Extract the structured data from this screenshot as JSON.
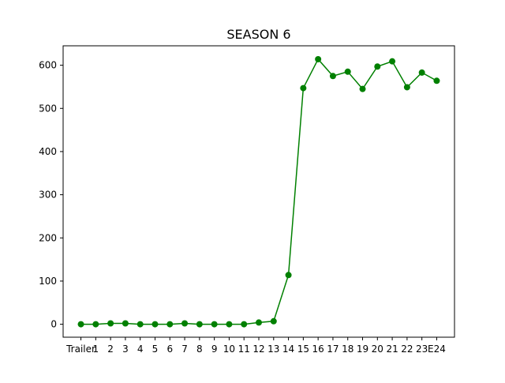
{
  "chart_data": {
    "type": "line",
    "title": "SEASON 6",
    "xlabel": "",
    "ylabel": "",
    "categories": [
      "Trailer",
      "1",
      "2",
      "3",
      "4",
      "5",
      "6",
      "7",
      "8",
      "9",
      "10",
      "11",
      "12",
      "13",
      "14",
      "15",
      "16",
      "17",
      "18",
      "19",
      "20",
      "21",
      "22",
      "23",
      "E24"
    ],
    "series": [
      {
        "values": [
          0,
          0,
          2,
          2,
          0,
          0,
          0,
          2,
          0,
          0,
          0,
          0,
          4,
          7,
          114,
          547,
          614,
          575,
          585,
          545,
          597,
          609,
          549,
          583,
          564
        ],
        "color": "#008000"
      }
    ],
    "ylim": [
      -30,
      645
    ],
    "yticks": [
      0,
      100,
      200,
      300,
      400,
      500,
      600
    ],
    "grid": false,
    "legend": "none"
  }
}
